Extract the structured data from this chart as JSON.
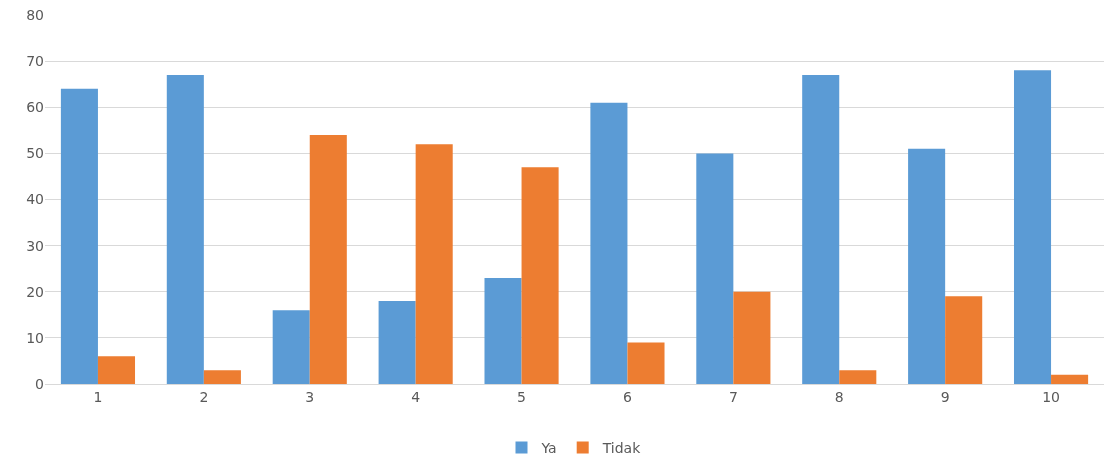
{
  "chart_data": {
    "type": "bar",
    "categories": [
      "1",
      "2",
      "3",
      "4",
      "5",
      "6",
      "7",
      "8",
      "9",
      "10"
    ],
    "series": [
      {
        "name": "Ya",
        "color": "#5b9bd5",
        "values": [
          64,
          67,
          16,
          18,
          23,
          61,
          50,
          67,
          51,
          68
        ]
      },
      {
        "name": "Tidak",
        "color": "#ed7d31",
        "values": [
          6,
          3,
          54,
          52,
          47,
          9,
          20,
          3,
          19,
          2
        ]
      }
    ],
    "ylim": [
      0,
      80
    ],
    "yticks": [
      0,
      10,
      20,
      30,
      40,
      50,
      60,
      70,
      80
    ],
    "grid": "y",
    "legend": "bottom"
  }
}
